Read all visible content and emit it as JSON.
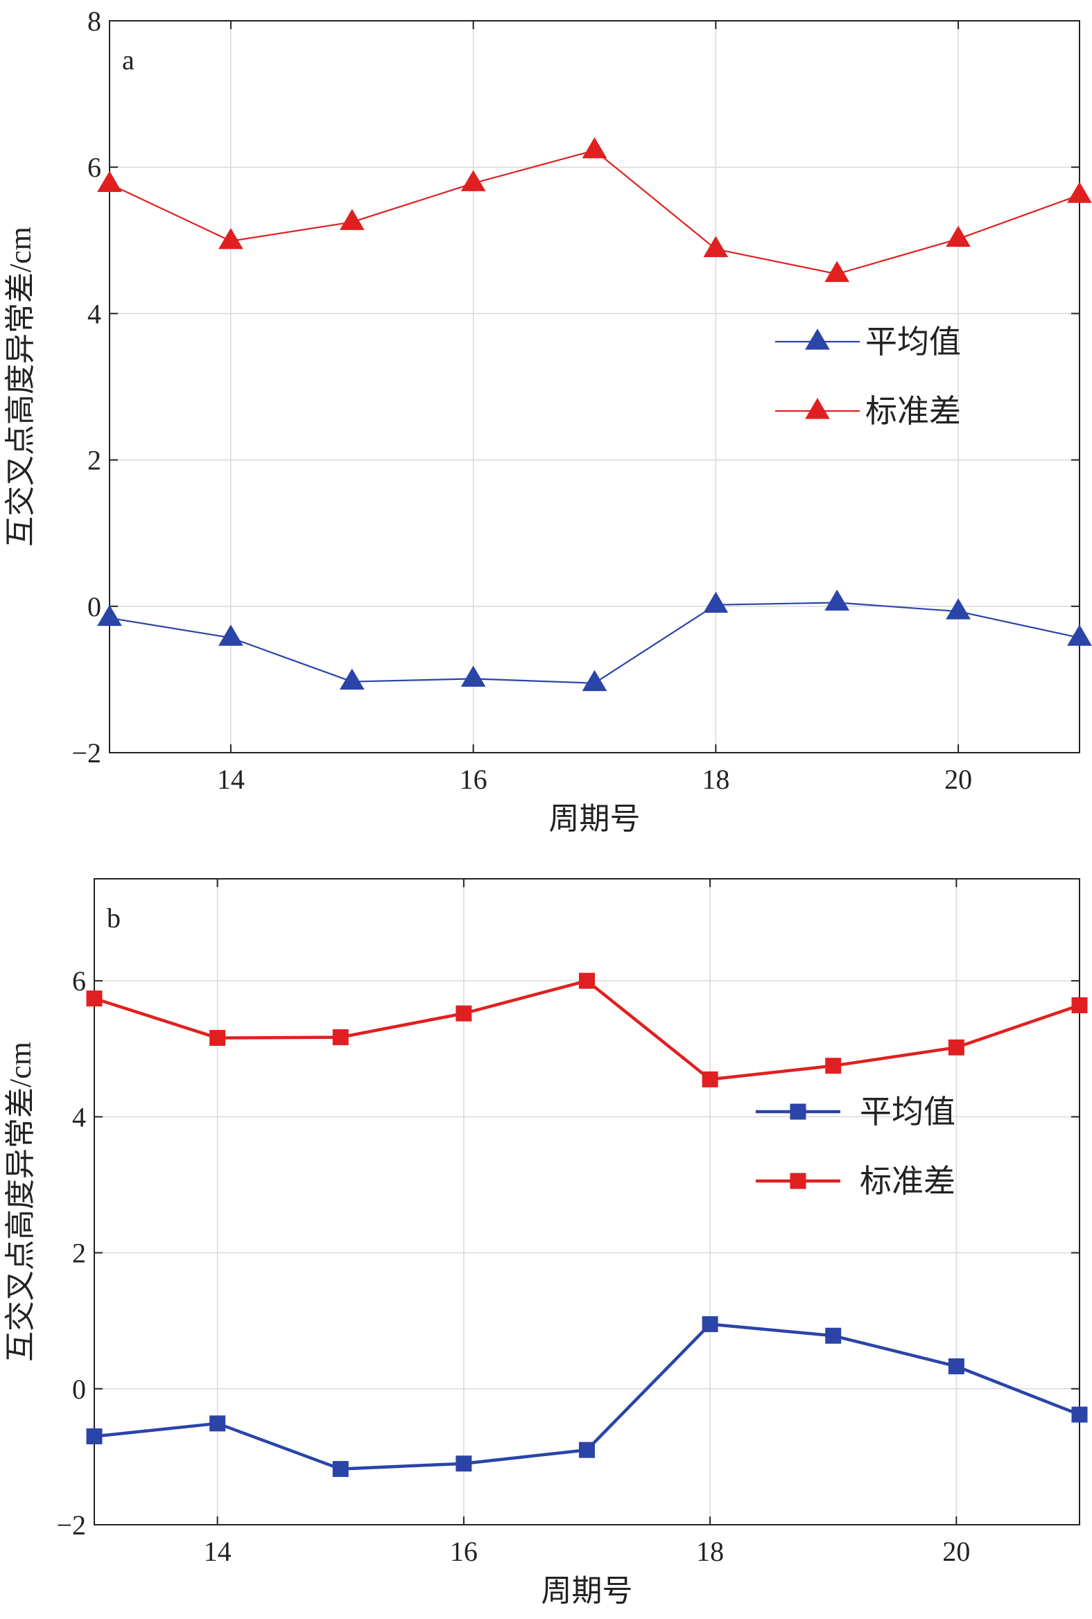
{
  "chart_data": [
    {
      "type": "line",
      "panel_label": "a",
      "x": [
        13,
        14,
        15,
        16,
        17,
        18,
        19,
        20,
        21
      ],
      "xlabel": "周期号",
      "ylabel": "互交叉点高度异常差/cm",
      "xlim": [
        13,
        21
      ],
      "ylim": [
        -2,
        8
      ],
      "xticks": [
        14,
        16,
        18,
        20
      ],
      "yticks": [
        -2,
        0,
        2,
        4,
        6,
        8
      ],
      "ytick_labels": [
        "−2",
        "0",
        "2",
        "4",
        "6",
        "8"
      ],
      "grid": true,
      "legend_position": "right",
      "marker": "triangle",
      "series": [
        {
          "name": "平均值",
          "color": "#2a44a8",
          "values": [
            -0.16,
            -0.43,
            -1.03,
            -0.99,
            -1.05,
            0.02,
            0.05,
            -0.07,
            -0.43
          ]
        },
        {
          "name": "标准差",
          "color": "#e02020",
          "values": [
            5.77,
            4.99,
            5.25,
            5.78,
            6.23,
            4.88,
            4.54,
            5.02,
            5.62
          ]
        }
      ]
    },
    {
      "type": "line",
      "panel_label": "b",
      "x": [
        13,
        14,
        15,
        16,
        17,
        18,
        19,
        20,
        21
      ],
      "xlabel": "周期号",
      "ylabel": "互交叉点高度异常差/cm",
      "xlim": [
        13,
        21
      ],
      "ylim": [
        -2,
        7.5
      ],
      "xticks": [
        14,
        16,
        18,
        20
      ],
      "yticks": [
        -2,
        0,
        2,
        4,
        6
      ],
      "ytick_labels": [
        "−2",
        "0",
        "2",
        "4",
        "6"
      ],
      "grid": true,
      "legend_position": "right",
      "marker": "square",
      "series": [
        {
          "name": "平均值",
          "color": "#2a44a8",
          "values": [
            -0.7,
            -0.51,
            -1.18,
            -1.1,
            -0.9,
            0.95,
            0.78,
            0.33,
            -0.38
          ]
        },
        {
          "name": "标准差",
          "color": "#e02020",
          "values": [
            5.74,
            5.16,
            5.17,
            5.52,
            6.0,
            4.55,
            4.75,
            5.02,
            5.64
          ]
        }
      ]
    }
  ]
}
